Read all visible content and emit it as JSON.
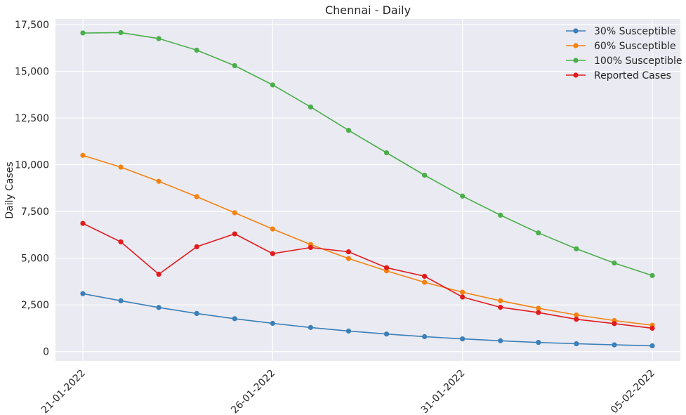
{
  "chart_data": {
    "type": "line",
    "title": "Chennai - Daily",
    "xlabel": "",
    "ylabel": "Daily Cases",
    "x": [
      "21-01-2022",
      "22-01-2022",
      "23-01-2022",
      "24-01-2022",
      "25-01-2022",
      "26-01-2022",
      "27-01-2022",
      "28-01-2022",
      "29-01-2022",
      "30-01-2022",
      "31-01-2022",
      "01-02-2022",
      "02-02-2022",
      "03-02-2022",
      "04-02-2022",
      "05-02-2022"
    ],
    "xticks": [
      "21-01-2022",
      "26-01-2022",
      "31-01-2022",
      "05-02-2022"
    ],
    "yticks": [
      0,
      2500,
      5000,
      7500,
      10000,
      12500,
      15000,
      17500
    ],
    "ytick_labels": [
      "0",
      "2,500",
      "5,000",
      "7,500",
      "10,000",
      "12,500",
      "15,000",
      "17,500"
    ],
    "ylim": [
      -500,
      17800
    ],
    "grid": true,
    "legend_position": "top-right",
    "series": [
      {
        "name": "30% Susceptible",
        "color": "#3a7fb8",
        "values": [
          3100,
          2720,
          2360,
          2040,
          1760,
          1510,
          1290,
          1100,
          940,
          800,
          680,
          580,
          490,
          420,
          360,
          310
        ]
      },
      {
        "name": "60% Susceptible",
        "color": "#f5820f",
        "values": [
          10500,
          9870,
          9110,
          8290,
          7430,
          6560,
          5730,
          4980,
          4320,
          3710,
          3180,
          2720,
          2320,
          1960,
          1660,
          1410
        ]
      },
      {
        "name": "100% Susceptible",
        "color": "#4aaf4a",
        "values": [
          17050,
          17070,
          16750,
          16130,
          15300,
          14270,
          13090,
          11840,
          10640,
          9440,
          8320,
          7300,
          6350,
          5500,
          4740,
          4070
        ]
      },
      {
        "name": "Reported Cases",
        "color": "#e11a1c",
        "values": [
          6860,
          5870,
          4140,
          5610,
          6300,
          5240,
          5570,
          5340,
          4490,
          4030,
          2920,
          2370,
          2090,
          1730,
          1500,
          1250
        ]
      }
    ]
  }
}
